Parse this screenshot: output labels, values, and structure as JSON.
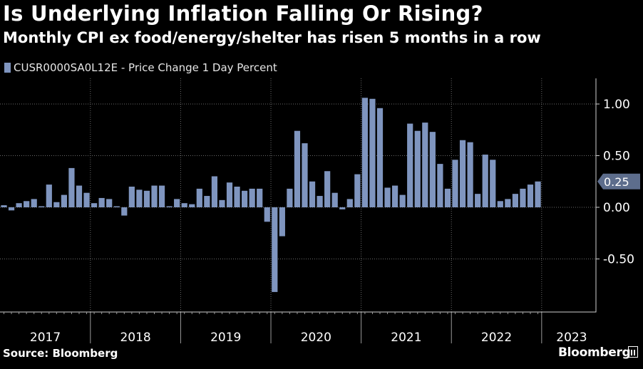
{
  "chart_data": {
    "type": "bar",
    "title": "Is Underlying Inflation Falling Or Rising?",
    "subtitle": "Monthly CPI ex food/energy/shelter has risen 5 months in a row",
    "series_name": "CUSR0000SA0L12E - Price Change 1 Day Percent",
    "ylim": [
      -1.0,
      1.22
    ],
    "yticks": [
      1.0,
      0.5,
      0.0,
      -0.5
    ],
    "ytick_labels": [
      "1.00",
      "0.50",
      "0.00",
      "-0.50"
    ],
    "year_labels": [
      "2017",
      "2018",
      "2019",
      "2020",
      "2021",
      "2022",
      "2023"
    ],
    "start_month": "2017-01",
    "values": [
      0.02,
      -0.03,
      0.04,
      0.06,
      0.08,
      0.01,
      0.22,
      0.05,
      0.12,
      0.38,
      0.21,
      0.14,
      0.04,
      0.09,
      0.08,
      0.01,
      -0.08,
      0.2,
      0.17,
      0.16,
      0.21,
      0.21,
      0.01,
      0.08,
      0.04,
      0.03,
      0.18,
      0.11,
      0.3,
      0.07,
      0.24,
      0.2,
      0.16,
      0.18,
      0.18,
      -0.14,
      -0.82,
      -0.28,
      0.18,
      0.74,
      0.62,
      0.25,
      0.11,
      0.35,
      0.14,
      -0.02,
      0.08,
      0.32,
      1.06,
      1.05,
      0.96,
      0.19,
      0.21,
      0.12,
      0.81,
      0.74,
      0.82,
      0.73,
      0.42,
      0.18,
      0.46,
      0.65,
      0.63,
      0.13,
      0.51,
      0.46,
      0.06,
      0.08,
      0.13,
      0.18,
      0.22,
      0.25
    ],
    "last_value_label": "0.25",
    "bar_color": "#7f95bf"
  },
  "source_label": "Source: Bloomberg",
  "brand_label": "Bloomberg",
  "brand_icon": "bloomberg-logo-icon"
}
